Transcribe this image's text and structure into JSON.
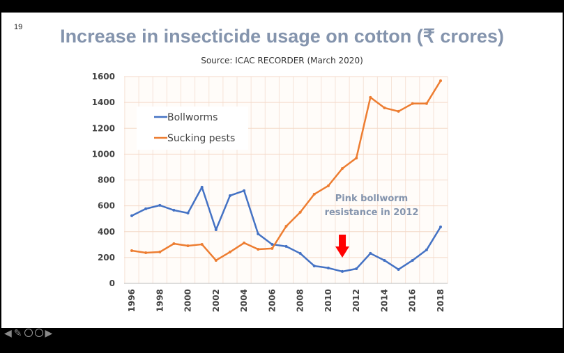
{
  "slide_number": "19",
  "title": "Increase in insecticide usage on cotton (₹ crores)",
  "source": "Source: ICAC RECORDER (March 2020)",
  "chart_data": {
    "type": "line",
    "x": [
      1996,
      1997,
      1998,
      1999,
      2000,
      2001,
      2002,
      2003,
      2004,
      2005,
      2006,
      2007,
      2008,
      2009,
      2010,
      2011,
      2012,
      2013,
      2014,
      2015,
      2016,
      2017,
      2018
    ],
    "x_tick_labels": [
      "1996",
      "1998",
      "2000",
      "2002",
      "2004",
      "2006",
      "2008",
      "2010",
      "2012",
      "2014",
      "2016",
      "2018"
    ],
    "y_tick_labels": [
      "0",
      "200",
      "400",
      "600",
      "800",
      "1000",
      "1200",
      "1400",
      "1600"
    ],
    "ylim": [
      0,
      1600
    ],
    "grid": true,
    "legend_position": "top-left",
    "series": [
      {
        "name": "Bollworms",
        "color": "#4472c4",
        "values": [
          523,
          577,
          604,
          566,
          544,
          744,
          415,
          679,
          717,
          383,
          302,
          286,
          232,
          135,
          119,
          92,
          113,
          232,
          178,
          108,
          178,
          259,
          437
        ]
      },
      {
        "name": "Sucking pests",
        "color": "#ed7d31",
        "values": [
          253,
          237,
          243,
          307,
          291,
          302,
          178,
          243,
          313,
          264,
          270,
          442,
          550,
          690,
          755,
          889,
          970,
          1439,
          1358,
          1331,
          1391,
          1391,
          1568
        ]
      }
    ],
    "annotation": {
      "line1": "Pink bollworm",
      "line2": "resistance in 2012",
      "arrow_year": 2011,
      "arrow_color": "#ff0000"
    }
  },
  "nav_icons": [
    "arrow-left-icon",
    "pen-icon",
    "slides-icon",
    "more-icon",
    "arrow-right-icon"
  ]
}
